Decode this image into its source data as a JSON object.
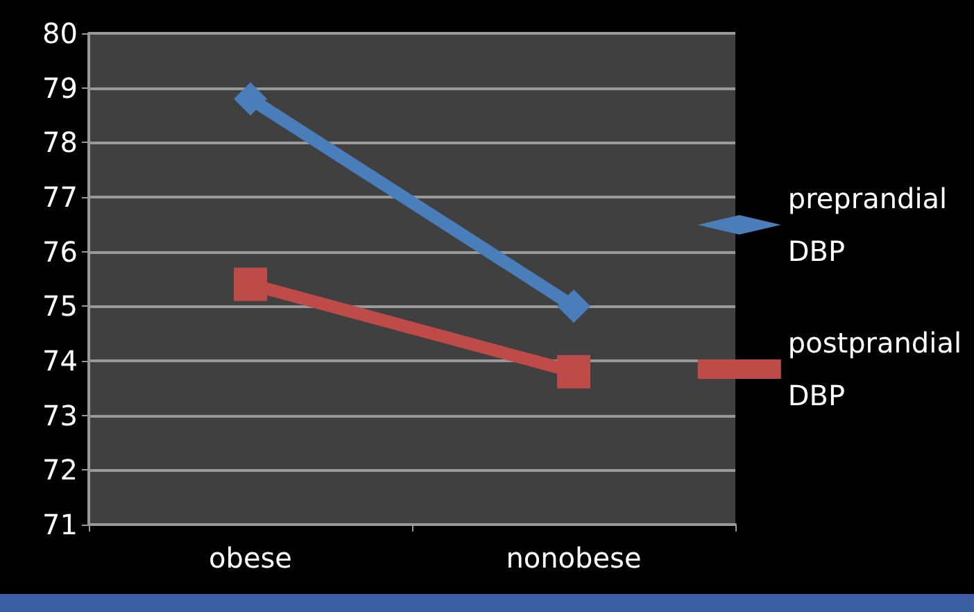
{
  "chart_data": {
    "type": "line",
    "categories": [
      "obese",
      "nonobese"
    ],
    "series": [
      {
        "name": "preprandial DBP",
        "color": "#4a7ebb",
        "marker": "diamond",
        "values": [
          78.8,
          75.0
        ]
      },
      {
        "name": "postprandial DBP",
        "color": "#be4b48",
        "marker": "square",
        "values": [
          75.4,
          73.8
        ]
      }
    ],
    "ylim": [
      71,
      80
    ],
    "yticks": [
      71,
      72,
      73,
      74,
      75,
      76,
      77,
      78,
      79,
      80
    ],
    "grid": "y",
    "legend": "right"
  }
}
